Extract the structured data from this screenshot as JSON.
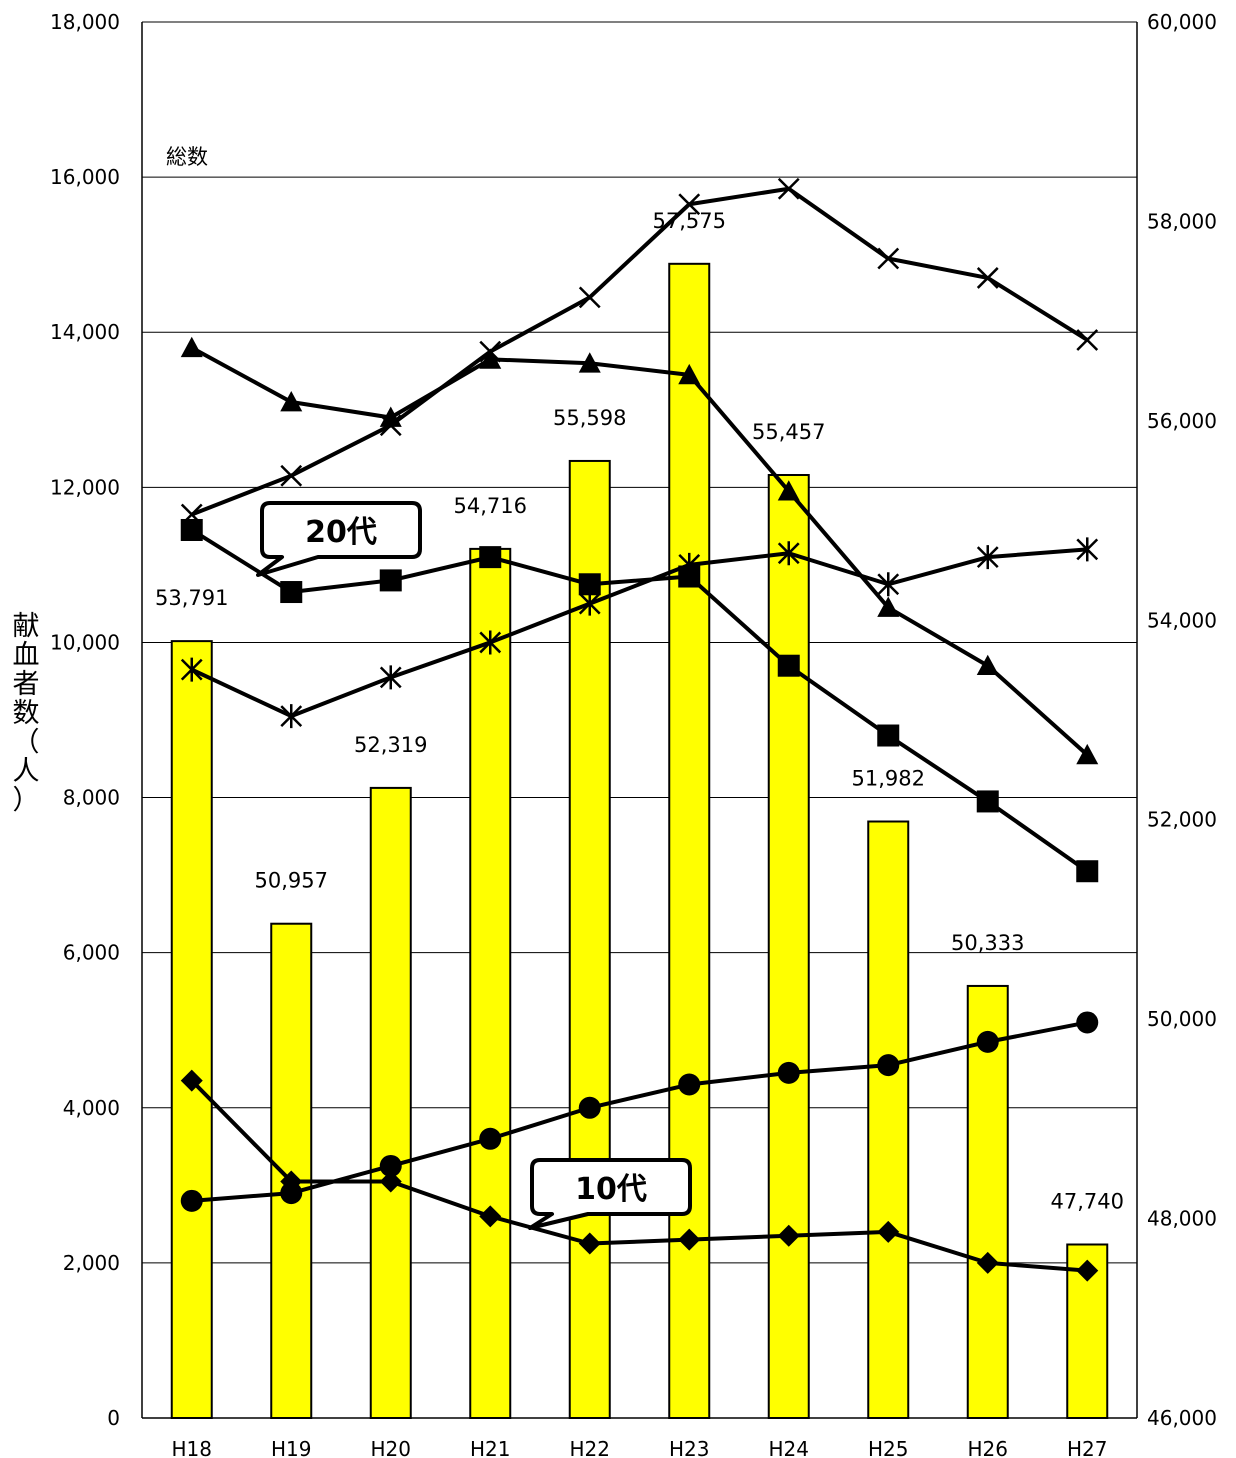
{
  "chart_data": {
    "type": "bar",
    "title": "",
    "ylabel": "献血者数（人）",
    "categories": [
      "H18",
      "H19",
      "H20",
      "H21",
      "H22",
      "H23",
      "H24",
      "H25",
      "H26",
      "H27"
    ],
    "bars": {
      "name": "総数",
      "axis": "right",
      "values": [
        53791,
        50957,
        52319,
        54716,
        55598,
        57575,
        55457,
        51982,
        50333,
        47740
      ],
      "labels": [
        "53,791",
        "50,957",
        "52,319",
        "54,716",
        "55,598",
        "57,575",
        "55,457",
        "51,982",
        "50,333",
        "47,740"
      ],
      "color": "#ffff00"
    },
    "series": [
      {
        "marker": "triangle",
        "axis": "left",
        "values": [
          13800,
          13100,
          12900,
          13650,
          13600,
          13450,
          11950,
          10450,
          9700,
          8550
        ]
      },
      {
        "marker": "square",
        "name": "20代",
        "axis": "left",
        "values": [
          11450,
          10650,
          10800,
          11100,
          10750,
          10850,
          9700,
          8800,
          7950,
          7050
        ]
      },
      {
        "marker": "x",
        "axis": "left",
        "values": [
          11650,
          12150,
          12800,
          13750,
          14450,
          15650,
          15850,
          14950,
          14700,
          13900
        ]
      },
      {
        "marker": "asterisk",
        "axis": "left",
        "values": [
          9650,
          9050,
          9550,
          10000,
          10500,
          11000,
          11150,
          10750,
          11100,
          11200
        ]
      },
      {
        "marker": "circle",
        "axis": "left",
        "values": [
          2800,
          2900,
          3250,
          3600,
          4000,
          4300,
          4450,
          4550,
          4850,
          5100
        ]
      },
      {
        "marker": "diamond",
        "name": "10代",
        "axis": "left",
        "values": [
          4350,
          3050,
          3050,
          2600,
          2250,
          2300,
          2350,
          2400,
          2000,
          1900
        ]
      }
    ],
    "left_axis": {
      "min": 0,
      "max": 18000,
      "step": 2000,
      "ticks": [
        "0",
        "2,000",
        "4,000",
        "6,000",
        "8,000",
        "10,000",
        "12,000",
        "14,000",
        "16,000",
        "18,000"
      ]
    },
    "right_axis": {
      "min": 46000,
      "max": 60000,
      "step": 2000,
      "ticks": [
        "46,000",
        "48,000",
        "50,000",
        "52,000",
        "54,000",
        "56,000",
        "58,000",
        "60,000"
      ]
    },
    "grid": true,
    "annotations": {
      "total_label": "総数",
      "callout_20": "20代",
      "callout_10": "10代"
    }
  }
}
